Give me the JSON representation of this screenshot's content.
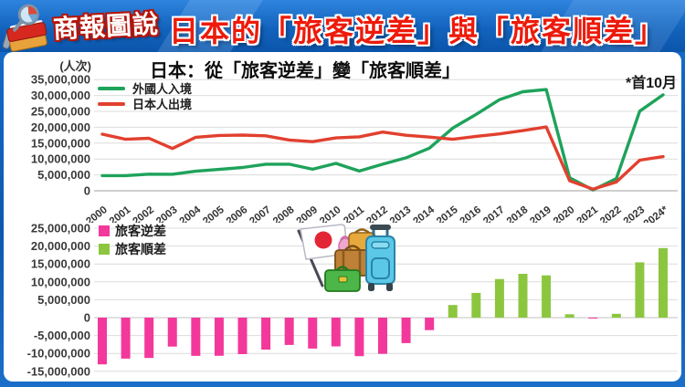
{
  "header": {
    "logo_text": "商報圖說",
    "title": "日本的「旅客逆差」與「旅客順差」"
  },
  "chart_data": [
    {
      "type": "line",
      "title": "日本：從「旅客逆差」變「旅客順差」",
      "note": "*首10月",
      "unit_label": "(人次)",
      "categories": [
        "2000",
        "2001",
        "2002",
        "2003",
        "2004",
        "2005",
        "2006",
        "2007",
        "2008",
        "2009",
        "2010",
        "2011",
        "2012",
        "2013",
        "2014",
        "2015",
        "2016",
        "2017",
        "2018",
        "2019",
        "2020",
        "2021",
        "2022",
        "2023",
        "2024*"
      ],
      "series": [
        {
          "name": "外國人入境",
          "color": "#1ea35a",
          "values": [
            4760000,
            4770000,
            5240000,
            5210000,
            6140000,
            6730000,
            7330000,
            8350000,
            8350000,
            6790000,
            8610000,
            6220000,
            8360000,
            10360000,
            13410000,
            19740000,
            24040000,
            28690000,
            31190000,
            31880000,
            4120000,
            250000,
            3830000,
            25070000,
            30190000
          ]
        },
        {
          "name": "日本人出境",
          "color": "#e2402f",
          "values": [
            17820000,
            16220000,
            16520000,
            13300000,
            16830000,
            17400000,
            17530000,
            17290000,
            15990000,
            15450000,
            16640000,
            16990000,
            18490000,
            17470000,
            16900000,
            16210000,
            17120000,
            17890000,
            18950000,
            20080000,
            3170000,
            510000,
            2770000,
            9620000,
            10760000
          ]
        }
      ],
      "ylim": [
        0,
        35000000
      ],
      "ytick_step": 5000000,
      "grid": true,
      "legend_position": "top-left"
    },
    {
      "type": "bar",
      "categories": [
        "2000",
        "2001",
        "2002",
        "2003",
        "2004",
        "2005",
        "2006",
        "2007",
        "2008",
        "2009",
        "2010",
        "2011",
        "2012",
        "2013",
        "2014",
        "2015",
        "2016",
        "2017",
        "2018",
        "2019",
        "2020",
        "2021",
        "2022",
        "2023",
        "2024*"
      ],
      "values": [
        -13060000,
        -11450000,
        -11280000,
        -8090000,
        -10690000,
        -10670000,
        -10200000,
        -8940000,
        -7640000,
        -8660000,
        -8030000,
        -10770000,
        -10130000,
        -7110000,
        -3490000,
        3530000,
        6920000,
        10800000,
        12240000,
        11800000,
        950000,
        -260000,
        1060000,
        15450000,
        19430000
      ],
      "series_label_negative": "旅客逆差",
      "series_label_positive": "旅客順差",
      "negative_color": "#f3389b",
      "positive_color": "#8cc63f",
      "ylim": [
        -15000000,
        25000000
      ],
      "ytick_step": 5000000,
      "grid": true,
      "legend_position": "top-left"
    }
  ]
}
